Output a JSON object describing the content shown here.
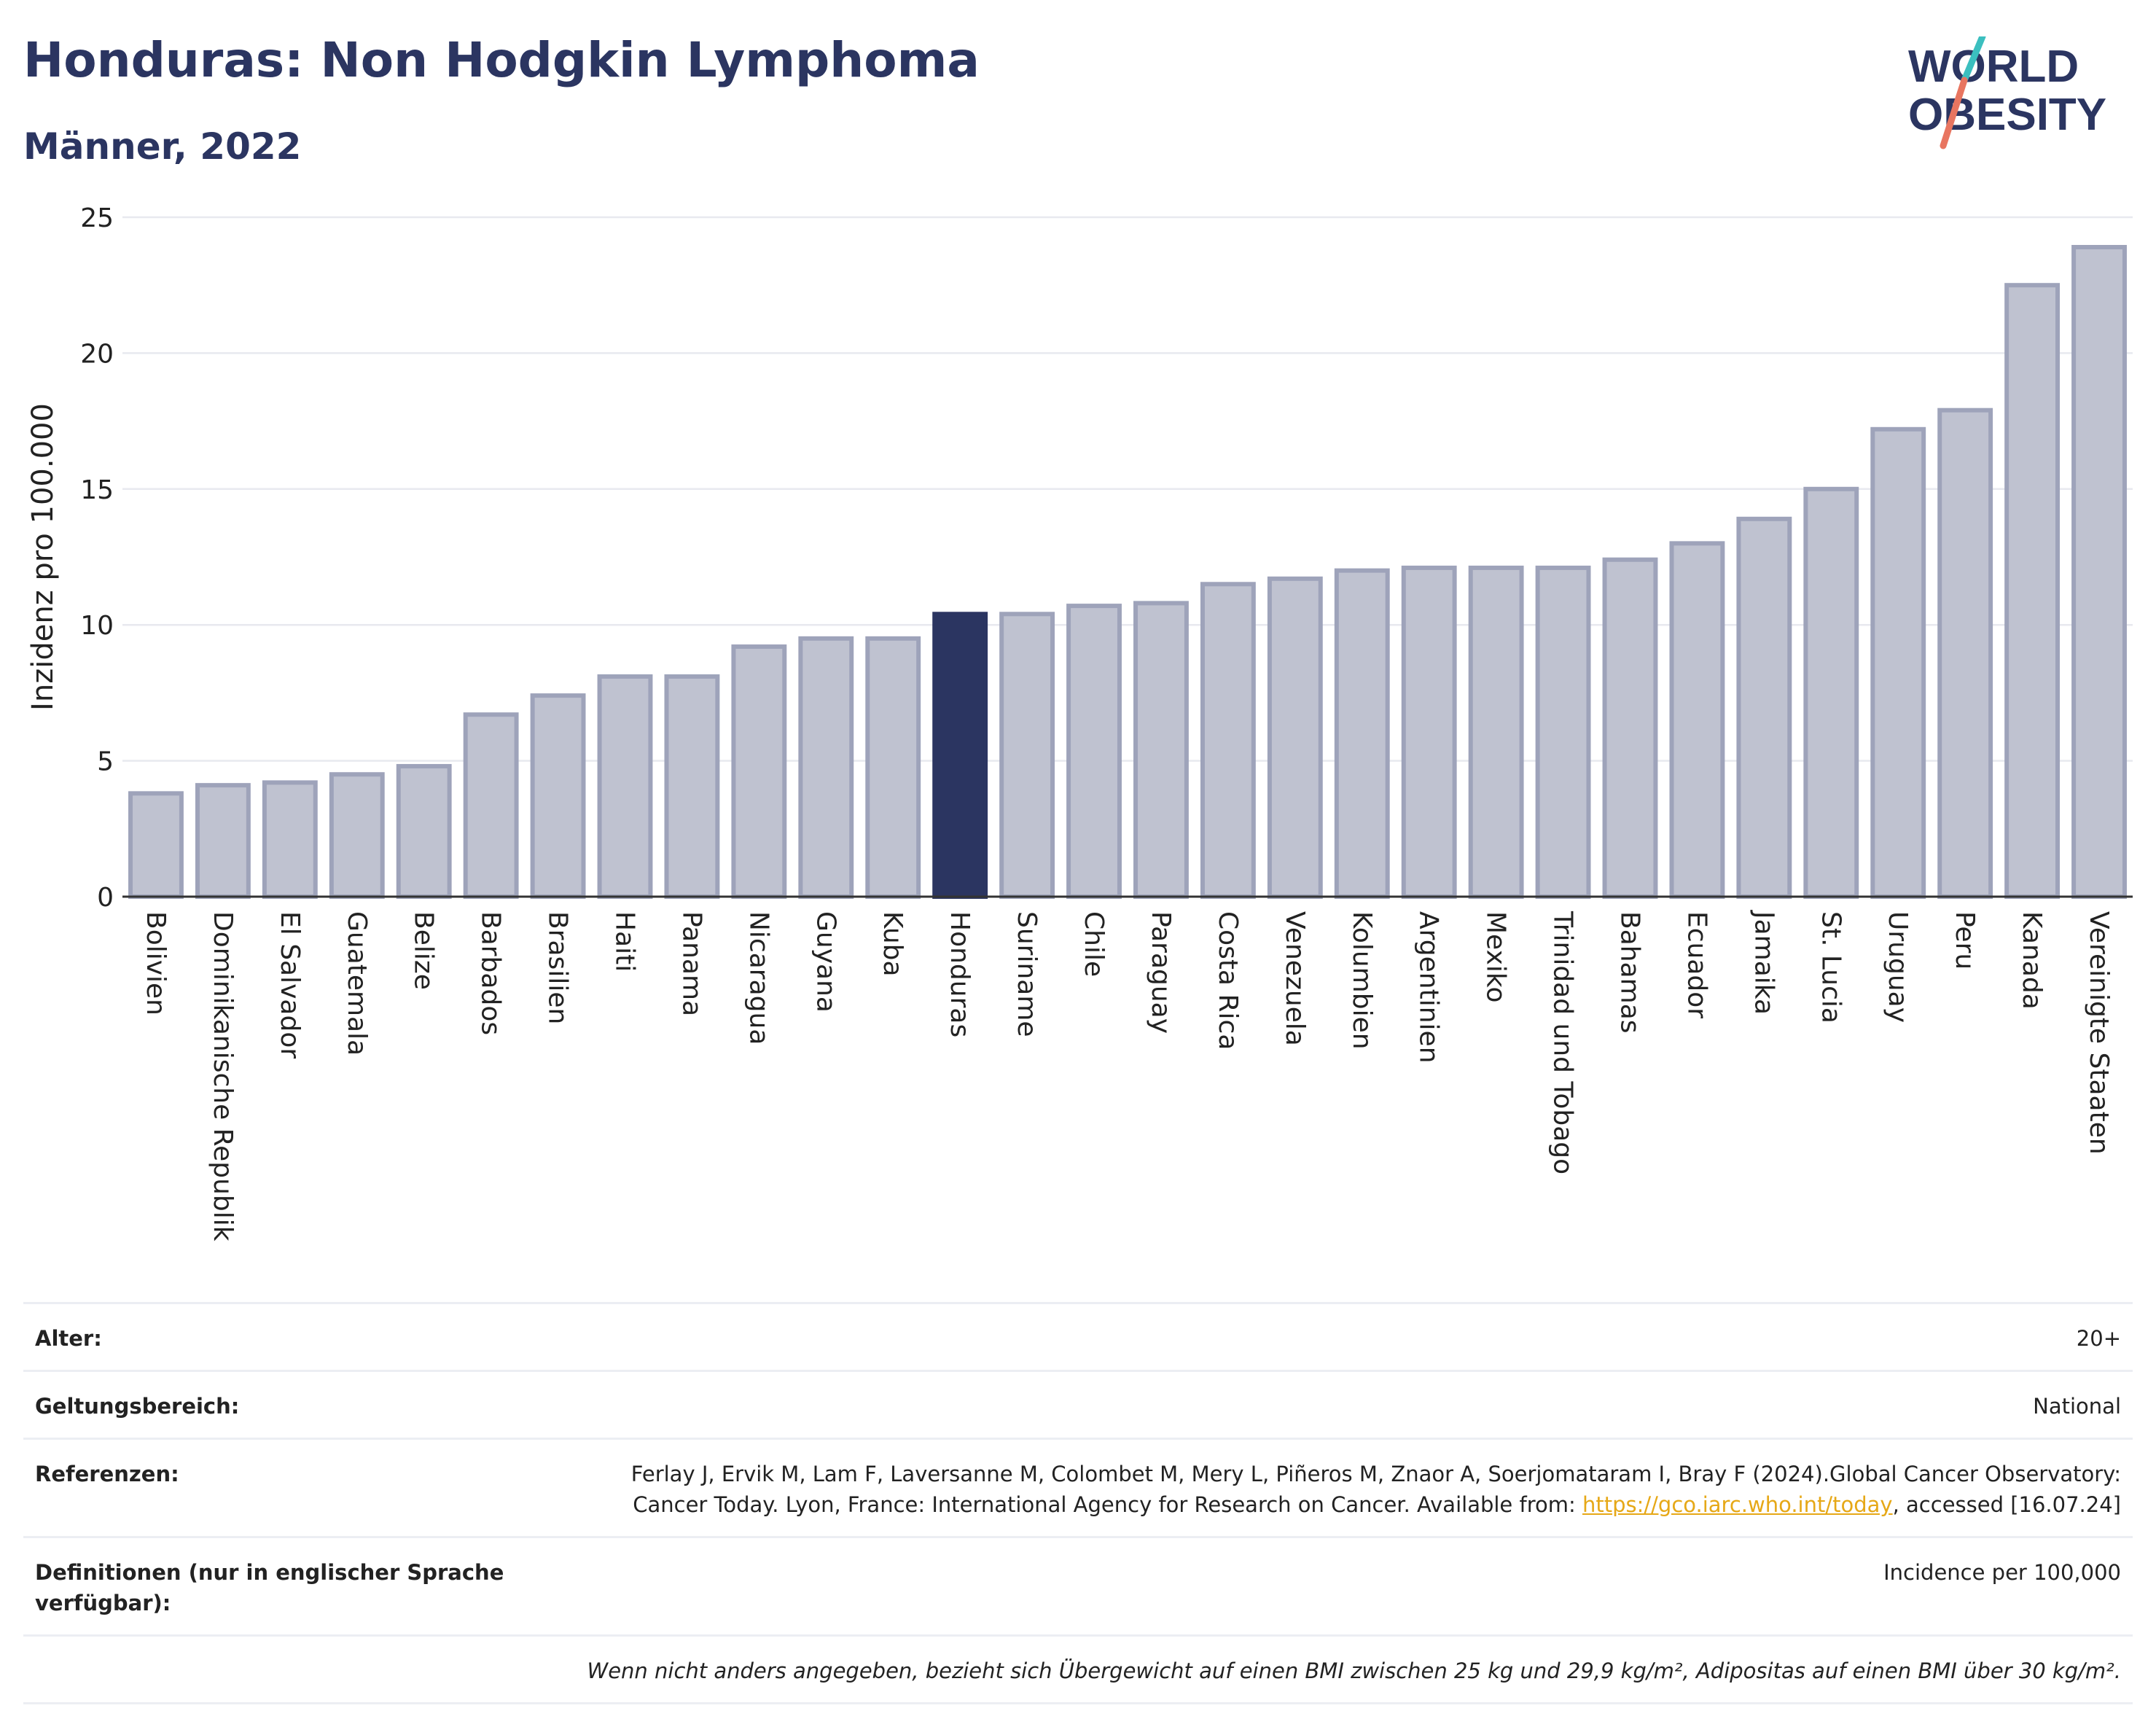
{
  "header": {
    "title": "Honduras: Non Hodgkin Lymphoma",
    "subtitle": "Männer, 2022"
  },
  "logo": {
    "line1": "WORLD",
    "line2": "OBESITY"
  },
  "colors": {
    "bar": "#bfc2d0",
    "bar_edge": "#9ea3ba",
    "highlight": "#2b3561",
    "title": "#2b3561"
  },
  "chart_data": {
    "type": "bar",
    "title": "Honduras: Non Hodgkin Lymphoma",
    "subtitle": "Männer, 2022",
    "ylabel": "Inzidenz pro 100.000",
    "xlabel": "",
    "ylim": [
      0,
      25
    ],
    "yticks": [
      0,
      5,
      10,
      15,
      20,
      25
    ],
    "grid": true,
    "highlight": "Honduras",
    "categories": [
      "Bolivien",
      "Dominikanische Republik",
      "El Salvador",
      "Guatemala",
      "Belize",
      "Barbados",
      "Brasilien",
      "Haiti",
      "Panama",
      "Nicaragua",
      "Guyana",
      "Kuba",
      "Honduras",
      "Suriname",
      "Chile",
      "Paraguay",
      "Costa Rica",
      "Venezuela",
      "Kolumbien",
      "Argentinien",
      "Mexiko",
      "Trinidad und Tobago",
      "Bahamas",
      "Ecuador",
      "Jamaika",
      "St. Lucia",
      "Uruguay",
      "Peru",
      "Kanada",
      "Vereinigte Staaten"
    ],
    "values": [
      3.8,
      4.1,
      4.2,
      4.5,
      4.8,
      6.7,
      7.4,
      8.1,
      8.1,
      9.2,
      9.5,
      9.5,
      10.4,
      10.4,
      10.7,
      10.8,
      11.5,
      11.7,
      12.0,
      12.1,
      12.1,
      12.1,
      12.4,
      13.0,
      13.9,
      15.0,
      17.2,
      17.9,
      22.5,
      23.9
    ]
  },
  "info": {
    "age_label": "Alter:",
    "age_value": "20+",
    "scope_label": "Geltungsbereich:",
    "scope_value": "National",
    "refs_label": "Referenzen:",
    "refs_text_1": "Ferlay J, Ervik M, Lam F, Laversanne M, Colombet M, Mery L, Piñeros M, Znaor A, Soerjomataram I, Bray F (2024).Global Cancer Observatory: Cancer Today. Lyon, France: International Agency for Research on Cancer. Available from: ",
    "refs_link": "https://gco.iarc.who.int/today",
    "refs_text_2": ", accessed [16.07.24]",
    "def_label": "Definitionen (nur in englischer Sprache verfügbar):",
    "def_value": "Incidence per 100,000",
    "note": "Wenn nicht anders angegeben, bezieht sich Übergewicht auf einen BMI zwischen 25 kg und 29,9 kg/m², Adipositas auf einen BMI über 30 kg/m²."
  }
}
